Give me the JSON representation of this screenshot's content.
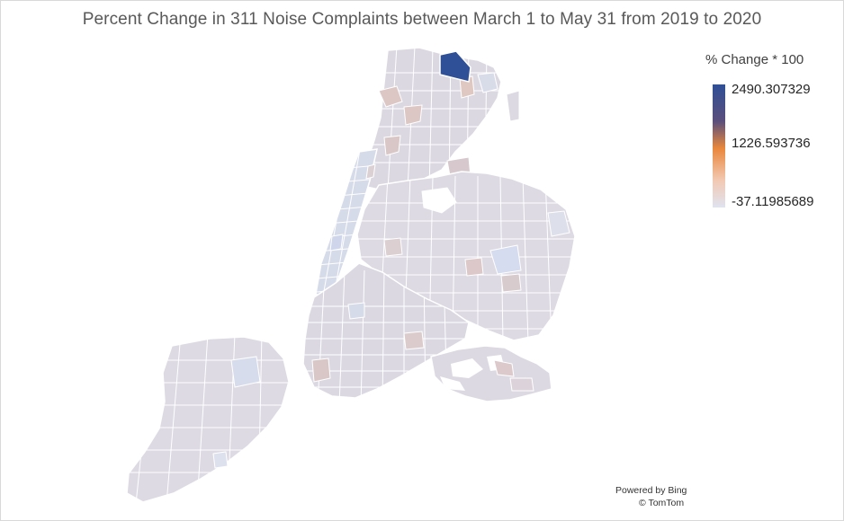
{
  "title": "Percent Change in 311 Noise Complaints between March 1 to May 31 from 2019 to 2020",
  "legend": {
    "title": "% Change * 100",
    "max_label": "2490.307329",
    "mid_label": "1226.593736",
    "min_label": "-37.11985689",
    "colors": {
      "max": "#2f4f96",
      "mid": "#e9883c",
      "min": "#dfe3f0"
    }
  },
  "attribution": {
    "line1": "Powered by Bing",
    "line2": "© TomTom"
  },
  "map_colors": {
    "land": "#dcd9e2",
    "border": "#ffffff",
    "highlight": "#2f4f96"
  }
}
